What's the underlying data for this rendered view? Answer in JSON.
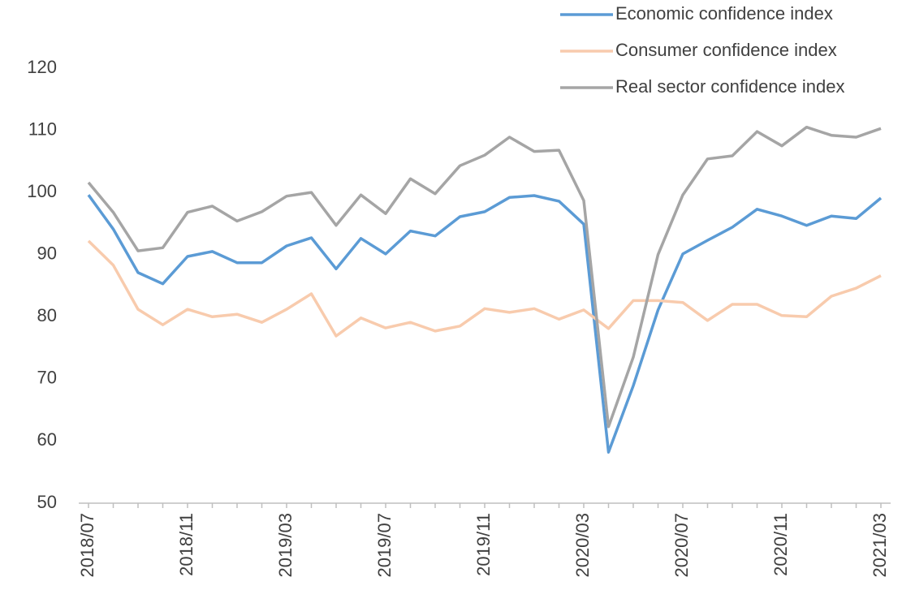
{
  "chart_data": {
    "type": "line",
    "categories": [
      "2018/07",
      null,
      null,
      null,
      "2018/11",
      null,
      null,
      null,
      "2019/03",
      null,
      null,
      null,
      "2019/07",
      null,
      null,
      null,
      "2019/11",
      null,
      null,
      null,
      "2020/03",
      null,
      null,
      null,
      "2020/07",
      null,
      null,
      null,
      "2020/11",
      null,
      null,
      null,
      "2021/03"
    ],
    "series": [
      {
        "name": "Economic confidence index",
        "color": "#5b9bd5",
        "values": [
          99.6,
          94.1,
          87.1,
          85.3,
          89.7,
          90.5,
          88.7,
          88.7,
          91.4,
          92.7,
          87.7,
          92.6,
          90.1,
          93.8,
          93.0,
          96.1,
          96.9,
          99.2,
          99.5,
          98.6,
          94.9,
          58.2,
          68.9,
          81.1,
          90.1,
          92.3,
          94.4,
          97.3,
          96.2,
          94.7,
          96.2,
          95.8,
          99.1
        ]
      },
      {
        "name": "Consumer confidence index",
        "color": "#f8cbad",
        "values": [
          92.2,
          88.3,
          81.2,
          78.7,
          81.2,
          80.0,
          80.4,
          79.1,
          81.2,
          83.7,
          76.9,
          79.8,
          78.2,
          79.1,
          77.7,
          78.5,
          81.3,
          80.7,
          81.3,
          79.6,
          81.1,
          78.1,
          82.6,
          82.6,
          82.3,
          79.4,
          82.0,
          82.0,
          80.2,
          80.0,
          83.3,
          84.6,
          86.6
        ]
      },
      {
        "name": "Real sector confidence index",
        "color": "#a5a5a5",
        "values": [
          101.6,
          96.8,
          90.6,
          91.1,
          96.8,
          97.8,
          95.4,
          96.9,
          99.4,
          100.0,
          94.7,
          99.6,
          96.6,
          102.2,
          99.8,
          104.3,
          106.0,
          108.9,
          106.6,
          106.8,
          98.7,
          62.3,
          73.5,
          90.0,
          99.6,
          105.4,
          105.9,
          109.8,
          107.5,
          110.5,
          109.2,
          108.9,
          110.3
        ]
      }
    ],
    "ylim": [
      50,
      120
    ],
    "yticks": [
      50,
      60,
      70,
      80,
      90,
      100,
      110,
      120
    ],
    "grid": false,
    "legend": "upper right"
  }
}
